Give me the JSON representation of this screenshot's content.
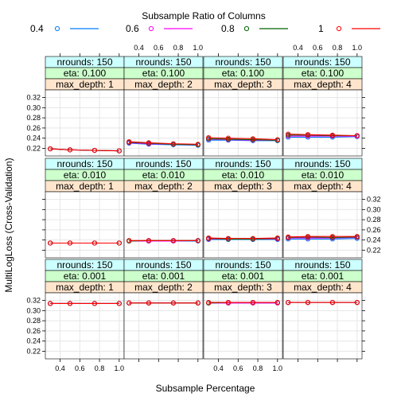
{
  "chart_data": {
    "type": "line",
    "title": "",
    "xlabel": "Subsample Percentage",
    "ylabel": "MultiLogLoss (Cross-Validation)",
    "legend": {
      "title": "Subsample Ratio of Columns",
      "placement": "top",
      "entries": [
        "0.4",
        "0.6",
        "0.8",
        "1"
      ]
    },
    "x": [
      0.3,
      0.5,
      0.75,
      1.0
    ],
    "xlim": [
      0.25,
      1.05
    ],
    "ylim": [
      0.205,
      0.335
    ],
    "x_ticks": [
      0.4,
      0.6,
      0.8,
      1.0
    ],
    "x_tick_labels": [
      "0.4",
      "0.6",
      "0.8",
      "1.0"
    ],
    "y_ticks": [
      0.22,
      0.24,
      0.26,
      0.28,
      0.3,
      0.32
    ],
    "y_tick_labels": [
      "0.22",
      "0.24",
      "0.26",
      "0.28",
      "0.30",
      "0.32"
    ],
    "grid": true,
    "series_colors": [
      "#0080ff",
      "#ff00ff",
      "#006400",
      "#ff0000"
    ],
    "strip_colors": {
      "nrounds": "#ccffff",
      "eta": "#ccffcc",
      "max_depth": "#ffe5cc"
    },
    "panels": [
      {
        "strips": [
          "nrounds: 150",
          "eta: 0.100",
          "max_depth: 1"
        ],
        "series": [
          {
            "values": [
              0.219,
              0.217,
              0.216,
              0.215
            ]
          },
          {
            "values": [
              0.219,
              0.217,
              0.216,
              0.215
            ]
          },
          {
            "values": [
              0.219,
              0.217,
              0.216,
              0.215
            ]
          },
          {
            "values": [
              0.219,
              0.217,
              0.216,
              0.215
            ]
          }
        ]
      },
      {
        "strips": [
          "nrounds: 150",
          "eta: 0.100",
          "max_depth: 2"
        ],
        "series": [
          {
            "values": [
              0.23,
              0.228,
              0.227,
              0.226
            ]
          },
          {
            "values": [
              0.231,
              0.229,
              0.228,
              0.227
            ]
          },
          {
            "values": [
              0.232,
              0.23,
              0.228,
              0.227
            ]
          },
          {
            "values": [
              0.233,
              0.231,
              0.229,
              0.228
            ]
          }
        ]
      },
      {
        "strips": [
          "nrounds: 150",
          "eta: 0.100",
          "max_depth: 3"
        ],
        "series": [
          {
            "values": [
              0.236,
              0.236,
              0.235,
              0.235
            ]
          },
          {
            "values": [
              0.238,
              0.237,
              0.236,
              0.236
            ]
          },
          {
            "values": [
              0.239,
              0.238,
              0.237,
              0.236
            ]
          },
          {
            "values": [
              0.241,
              0.24,
              0.239,
              0.237
            ]
          }
        ]
      },
      {
        "strips": [
          "nrounds: 150",
          "eta: 0.100",
          "max_depth: 4"
        ],
        "series": [
          {
            "values": [
              0.242,
              0.242,
              0.242,
              0.243
            ]
          },
          {
            "values": [
              0.244,
              0.244,
              0.244,
              0.244
            ]
          },
          {
            "values": [
              0.246,
              0.246,
              0.245,
              0.245
            ]
          },
          {
            "values": [
              0.248,
              0.247,
              0.246,
              0.245
            ]
          }
        ]
      },
      {
        "strips": [
          "nrounds: 150",
          "eta: 0.010",
          "max_depth: 1"
        ],
        "series": [
          {
            "values": [
              0.234,
              0.234,
              0.234,
              0.234
            ]
          },
          {
            "values": [
              0.234,
              0.234,
              0.234,
              0.234
            ]
          },
          {
            "values": [
              0.234,
              0.234,
              0.234,
              0.234
            ]
          },
          {
            "values": [
              0.234,
              0.234,
              0.234,
              0.234
            ]
          }
        ]
      },
      {
        "strips": [
          "nrounds: 150",
          "eta: 0.010",
          "max_depth: 2"
        ],
        "series": [
          {
            "values": [
              0.238,
              0.238,
              0.238,
              0.238
            ]
          },
          {
            "values": [
              0.238,
              0.238,
              0.238,
              0.239
            ]
          },
          {
            "values": [
              0.238,
              0.239,
              0.239,
              0.239
            ]
          },
          {
            "values": [
              0.239,
              0.239,
              0.239,
              0.239
            ]
          }
        ]
      },
      {
        "strips": [
          "nrounds: 150",
          "eta: 0.010",
          "max_depth: 3"
        ],
        "series": [
          {
            "values": [
              0.241,
              0.241,
              0.241,
              0.241
            ]
          },
          {
            "values": [
              0.242,
              0.242,
              0.242,
              0.242
            ]
          },
          {
            "values": [
              0.243,
              0.242,
              0.242,
              0.243
            ]
          },
          {
            "values": [
              0.244,
              0.243,
              0.243,
              0.244
            ]
          }
        ]
      },
      {
        "strips": [
          "nrounds: 150",
          "eta: 0.010",
          "max_depth: 4"
        ],
        "series": [
          {
            "values": [
              0.242,
              0.242,
              0.242,
              0.243
            ]
          },
          {
            "values": [
              0.244,
              0.244,
              0.244,
              0.245
            ]
          },
          {
            "values": [
              0.245,
              0.246,
              0.245,
              0.246
            ]
          },
          {
            "values": [
              0.246,
              0.247,
              0.247,
              0.247
            ]
          }
        ]
      },
      {
        "strips": [
          "nrounds: 150",
          "eta: 0.001",
          "max_depth: 1"
        ],
        "series": [
          {
            "values": [
              0.314,
              0.314,
              0.314,
              0.314
            ]
          },
          {
            "values": [
              0.314,
              0.314,
              0.314,
              0.314
            ]
          },
          {
            "values": [
              0.314,
              0.314,
              0.314,
              0.314
            ]
          },
          {
            "values": [
              0.314,
              0.314,
              0.314,
              0.314
            ]
          }
        ]
      },
      {
        "strips": [
          "nrounds: 150",
          "eta: 0.001",
          "max_depth: 2"
        ],
        "series": [
          {
            "values": [
              0.315,
              0.315,
              0.315,
              0.315
            ]
          },
          {
            "values": [
              0.315,
              0.315,
              0.315,
              0.315
            ]
          },
          {
            "values": [
              0.315,
              0.315,
              0.315,
              0.315
            ]
          },
          {
            "values": [
              0.315,
              0.315,
              0.315,
              0.315
            ]
          }
        ]
      },
      {
        "strips": [
          "nrounds: 150",
          "eta: 0.001",
          "max_depth: 3"
        ],
        "series": [
          {
            "values": [
              0.315,
              0.315,
              0.315,
              0.315
            ]
          },
          {
            "values": [
              0.315,
              0.315,
              0.315,
              0.315
            ]
          },
          {
            "values": [
              0.315,
              0.316,
              0.316,
              0.316
            ]
          },
          {
            "values": [
              0.316,
              0.316,
              0.316,
              0.316
            ]
          }
        ]
      },
      {
        "strips": [
          "nrounds: 150",
          "eta: 0.001",
          "max_depth: 4"
        ],
        "series": [
          {
            "values": [
              0.316,
              0.316,
              0.316,
              0.316
            ]
          },
          {
            "values": [
              0.316,
              0.316,
              0.316,
              0.316
            ]
          },
          {
            "values": [
              0.316,
              0.316,
              0.316,
              0.316
            ]
          },
          {
            "values": [
              0.316,
              0.316,
              0.316,
              0.316
            ]
          }
        ]
      }
    ]
  }
}
